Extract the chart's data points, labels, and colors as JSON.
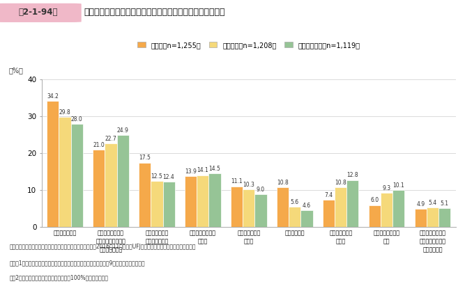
{
  "title": "持続成長型企業が成長段階ごとに利用した支援施策等の内容",
  "title_prefix": "第2-1-94図",
  "legend_labels": [
    "創業期（n=1,255）",
    "成長初期（n=1,208）",
    "安定・拡大期（n=1,119）"
  ],
  "colors": [
    "#F5A94A",
    "#F5D97A",
    "#96C496"
  ],
  "categories": [
    "起業・経営相談",
    "インターネット等\nによる起業・経営に\n関する情報提供",
    "起業に伴う各種\n手続に係る支援",
    "起業支援補助金・\n助成金",
    "起業・経営支援\n講座等",
    "起業支援融資",
    "販路開拓のため\nの支援",
    "人材確保のための\n支援",
    "民間のオフィス、\n事務機器等のレン\nタルサービス"
  ],
  "series": [
    [
      34.2,
      21.0,
      17.5,
      13.9,
      11.1,
      10.8,
      7.4,
      6.0,
      4.9
    ],
    [
      29.8,
      22.7,
      12.5,
      14.1,
      10.3,
      5.6,
      10.8,
      9.3,
      5.4
    ],
    [
      28.0,
      24.9,
      12.4,
      14.5,
      9.0,
      4.6,
      12.8,
      10.1,
      5.1
    ]
  ],
  "ylabel": "（%）",
  "ylim": [
    0,
    40
  ],
  "yticks": [
    0,
    10,
    20,
    30,
    40
  ],
  "footnote1": "資料：中小企業庁委託「起業・創業の実態に関する調査」（2016年11月、三菱UFJリサーチ＆コンサルティング（株））",
  "footnote2": "（注）1．持続成長型の企業が創業期において、回答割合が高い上位9項目を表示している。",
  "footnote3": "　　2．複数回答のため、合計は必ずしも100%にはならない。",
  "bar_width": 0.26,
  "background_color": "#ffffff",
  "header_pink": "#f0b8b8",
  "header_label_bg": "#e8a0a0"
}
